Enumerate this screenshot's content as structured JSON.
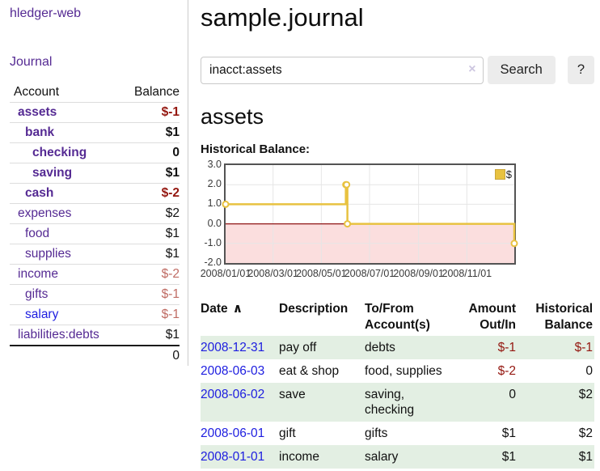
{
  "app": {
    "title": "hledger-web"
  },
  "sidebar": {
    "journal_link": "Journal",
    "table": {
      "headers": {
        "account": "Account",
        "balance": "Balance"
      },
      "accounts": [
        {
          "name": "assets",
          "indent": 0,
          "bold": true,
          "balance": "$-1",
          "negative": "strong"
        },
        {
          "name": "bank",
          "indent": 1,
          "bold": true,
          "balance": "$1",
          "negative": "none"
        },
        {
          "name": "checking",
          "indent": 2,
          "bold": true,
          "balance": "0",
          "negative": "none"
        },
        {
          "name": "saving",
          "indent": 2,
          "bold": true,
          "balance": "$1",
          "negative": "none"
        },
        {
          "name": "cash",
          "indent": 1,
          "bold": true,
          "balance": "$-2",
          "negative": "strong"
        },
        {
          "name": "expenses",
          "indent": 0,
          "bold": false,
          "balance": "$2",
          "negative": "none"
        },
        {
          "name": "food",
          "indent": 1,
          "bold": false,
          "balance": "$1",
          "negative": "none"
        },
        {
          "name": "supplies",
          "indent": 1,
          "bold": false,
          "balance": "$1",
          "negative": "none"
        },
        {
          "name": "income",
          "indent": 0,
          "bold": false,
          "balance": "$-2",
          "negative": "soft"
        },
        {
          "name": "gifts",
          "indent": 1,
          "bold": false,
          "balance": "$-1",
          "negative": "soft"
        },
        {
          "name": "salary",
          "indent": 1,
          "bold": false,
          "balance": "$-1",
          "negative": "soft",
          "blue_link": true
        },
        {
          "name": "liabilities:debts",
          "indent": 0,
          "bold": false,
          "balance": "$1",
          "negative": "none"
        }
      ],
      "total": "0"
    }
  },
  "header": {
    "title": "sample.journal"
  },
  "search": {
    "value": "inacct:assets",
    "clear_icon": "×",
    "button": "Search",
    "help_button": "?"
  },
  "account_page": {
    "heading": "assets",
    "chart_label": "Historical Balance:"
  },
  "chart_data": {
    "type": "line",
    "step": true,
    "title": "Historical Balance:",
    "series": [
      {
        "name": "$",
        "color": "#e8c240",
        "points": [
          [
            "2008-01-01",
            1
          ],
          [
            "2008-06-01",
            2
          ],
          [
            "2008-06-02",
            2
          ],
          [
            "2008-06-03",
            0
          ],
          [
            "2008-12-31",
            -1
          ]
        ]
      }
    ],
    "x_ticks": [
      "2008/01/01",
      "2008/03/01",
      "2008/05/01",
      "2008/07/01",
      "2008/09/01",
      "2008/11/01"
    ],
    "y_ticks": [
      "3.0",
      "2.0",
      "1.0",
      "0.0",
      "-1.0",
      "-2.0"
    ],
    "xlim": [
      "2008-01-01",
      "2008-12-31"
    ],
    "ylim": [
      -2,
      3
    ],
    "grid": true,
    "legend": {
      "position": "top-right",
      "label": "$"
    },
    "negative_region_fill": "#fbdede",
    "zero_line_color": "#8f1414"
  },
  "table": {
    "sort_icon": "∧",
    "columns": [
      {
        "label": "Date",
        "sub": "",
        "align": "left",
        "sorted": true
      },
      {
        "label": "Description",
        "sub": "",
        "align": "left"
      },
      {
        "label": "To/From",
        "sub": "Account(s)",
        "align": "left"
      },
      {
        "label": "Amount",
        "sub": "Out/In",
        "align": "right"
      },
      {
        "label": "Historical",
        "sub": "Balance",
        "align": "right"
      }
    ],
    "rows": [
      {
        "date": "2008-12-31",
        "description": "pay off",
        "accounts": "debts",
        "amount": "$-1",
        "amount_negative": true,
        "balance": "$-1",
        "balance_negative": true,
        "shaded": true
      },
      {
        "date": "2008-06-03",
        "description": "eat & shop",
        "accounts": "food, supplies",
        "amount": "$-2",
        "amount_negative": true,
        "balance": "0",
        "balance_negative": false,
        "shaded": false
      },
      {
        "date": "2008-06-02",
        "description": "save",
        "accounts": "saving, checking",
        "amount": "0",
        "amount_negative": false,
        "balance": "$2",
        "balance_negative": false,
        "shaded": true
      },
      {
        "date": "2008-06-01",
        "description": "gift",
        "accounts": "gifts",
        "amount": "$1",
        "amount_negative": false,
        "balance": "$2",
        "balance_negative": false,
        "shaded": false
      },
      {
        "date": "2008-01-01",
        "description": "income",
        "accounts": "salary",
        "amount": "$1",
        "amount_negative": false,
        "balance": "$1",
        "balance_negative": false,
        "shaded": true
      }
    ]
  },
  "colors": {
    "link_purple": "#552a93",
    "link_blue": "#1d1de0",
    "negative_strong": "#941710",
    "negative_soft": "#bf6b63",
    "row_shade_green": "#e3efe3",
    "series_gold": "#e8c240",
    "negative_region_pink": "#fbdede",
    "zero_line_red": "#8f1414",
    "button_bg": "#ececec"
  }
}
